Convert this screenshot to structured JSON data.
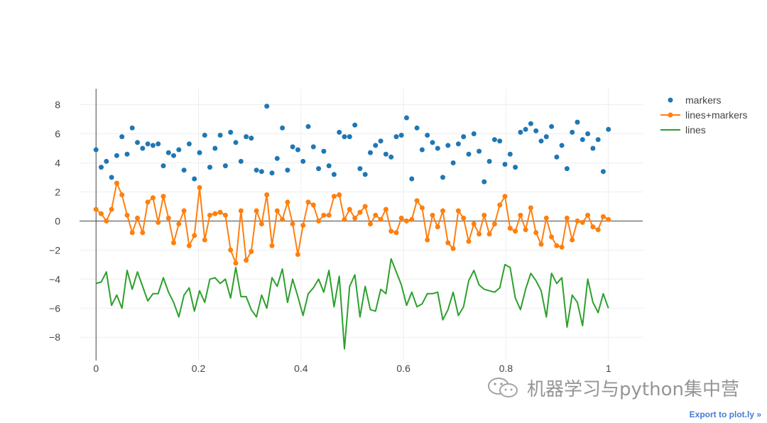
{
  "chart_data": {
    "type": "scatter",
    "x": [
      0,
      0.0101,
      0.0202,
      0.0303,
      0.0404,
      0.0505,
      0.0606,
      0.0707,
      0.0808,
      0.0909,
      0.101,
      0.1111,
      0.1212,
      0.1313,
      0.1414,
      0.1515,
      0.1616,
      0.1717,
      0.1818,
      0.1919,
      0.202,
      0.2121,
      0.2222,
      0.2323,
      0.2424,
      0.2525,
      0.2626,
      0.2727,
      0.2828,
      0.2929,
      0.303,
      0.3131,
      0.3232,
      0.3333,
      0.3434,
      0.3535,
      0.3636,
      0.3737,
      0.3838,
      0.3939,
      0.404,
      0.4141,
      0.4242,
      0.4343,
      0.4444,
      0.4545,
      0.4646,
      0.4747,
      0.4848,
      0.4949,
      0.5051,
      0.5152,
      0.5253,
      0.5354,
      0.5455,
      0.5556,
      0.5657,
      0.5758,
      0.5859,
      0.596,
      0.6061,
      0.6162,
      0.6263,
      0.6364,
      0.6465,
      0.6566,
      0.6667,
      0.6768,
      0.6869,
      0.697,
      0.7071,
      0.7172,
      0.7273,
      0.7374,
      0.7475,
      0.7576,
      0.7677,
      0.7778,
      0.7879,
      0.798,
      0.8081,
      0.8182,
      0.8283,
      0.8384,
      0.8485,
      0.8586,
      0.8687,
      0.8788,
      0.8889,
      0.899,
      0.9091,
      0.9192,
      0.9293,
      0.9394,
      0.9495,
      0.9596,
      0.9697,
      0.9798,
      0.9899,
      1
    ],
    "series": [
      {
        "name": "markers",
        "mode": "markers",
        "color": "#1f77b4",
        "values": [
          4.9,
          3.7,
          4.1,
          3,
          4.5,
          5.8,
          4.6,
          6.4,
          5.4,
          5,
          5.3,
          5.2,
          5.3,
          3.8,
          4.7,
          4.5,
          4.9,
          3.5,
          5.3,
          2.9,
          4.7,
          5.9,
          3.7,
          5,
          5.9,
          3.8,
          6.1,
          5.4,
          4.1,
          5.8,
          5.7,
          3.5,
          3.4,
          7.9,
          3.3,
          4.3,
          6.4,
          3.5,
          5.1,
          4.9,
          4.1,
          6.5,
          5.1,
          3.6,
          4.8,
          3.8,
          3.2,
          6.1,
          5.8,
          5.8,
          6.6,
          3.6,
          3.2,
          4.7,
          5.2,
          5.5,
          4.6,
          4.4,
          5.8,
          5.9,
          7.1,
          2.9,
          6.4,
          4.9,
          5.9,
          5.4,
          5,
          3,
          5.2,
          4,
          5.3,
          5.8,
          4.6,
          6,
          4.8,
          2.7,
          4.1,
          5.6,
          5.5,
          3.9,
          4.6,
          3.7,
          6.1,
          6.3,
          6.7,
          6.2,
          5.5,
          5.8,
          6.5,
          4.4,
          5.2,
          3.6,
          6.1,
          6.8,
          5.6,
          6,
          5,
          5.6,
          3.4,
          6.3
        ]
      },
      {
        "name": "lines+markers",
        "mode": "lines+markers",
        "color": "#ff7f0e",
        "values": [
          0.8,
          0.5,
          0,
          0.8,
          2.6,
          1.8,
          0.4,
          -0.8,
          0.2,
          -0.8,
          1.3,
          1.6,
          -0.1,
          1.7,
          0.2,
          -1.5,
          -0.2,
          0.7,
          -1.7,
          -1,
          2.3,
          -1.3,
          0.4,
          0.5,
          0.6,
          0.4,
          -2,
          -2.9,
          0.7,
          -2.7,
          -2.1,
          0.7,
          -0.2,
          1.8,
          -1.7,
          0.7,
          0.1,
          1.3,
          -0.2,
          -2.3,
          -0.3,
          1.3,
          1.1,
          0,
          0.4,
          0.4,
          1.7,
          1.8,
          0.1,
          0.8,
          0.2,
          0.6,
          1,
          -0.2,
          0.4,
          0.1,
          0.8,
          -0.7,
          -0.8,
          0.2,
          0,
          0.1,
          1.4,
          0.9,
          -1.3,
          0.4,
          -0.4,
          0.7,
          -1.5,
          -1.9,
          0.7,
          0.2,
          -1.4,
          -0.2,
          -0.9,
          0.4,
          -0.9,
          -0.2,
          1.1,
          1.7,
          -0.5,
          -0.7,
          0.4,
          -0.6,
          0.9,
          -0.8,
          -1.6,
          0.2,
          -1.1,
          -1.7,
          -1.8,
          0.2,
          -1.3,
          0,
          -0.1,
          0.4,
          -0.4,
          -0.6,
          0.3,
          0.1
        ]
      },
      {
        "name": "lines",
        "mode": "lines",
        "color": "#2ca02c",
        "values": [
          -4.3,
          -4.2,
          -3.5,
          -5.8,
          -5.1,
          -6,
          -3.4,
          -4.7,
          -3.5,
          -4.5,
          -5.5,
          -5,
          -5,
          -3.9,
          -4.9,
          -5.6,
          -6.6,
          -5.1,
          -4.6,
          -6.2,
          -4.8,
          -5.6,
          -4,
          -3.9,
          -4.3,
          -4,
          -5.3,
          -3.2,
          -5.2,
          -5.2,
          -6.1,
          -6.6,
          -5.1,
          -6,
          -3.9,
          -4.5,
          -3.3,
          -5.6,
          -4,
          -5.2,
          -6.5,
          -5,
          -4.6,
          -4,
          -4.9,
          -3.4,
          -5.9,
          -3.8,
          -8.8,
          -4.5,
          -3.7,
          -6.6,
          -4.5,
          -6.1,
          -6.2,
          -4.7,
          -5,
          -2.6,
          -3.5,
          -4.4,
          -5.8,
          -4.9,
          -5.9,
          -5.7,
          -5,
          -5,
          -4.9,
          -6.8,
          -6.1,
          -4.9,
          -6.5,
          -5.9,
          -4.1,
          -3.4,
          -4.4,
          -4.7,
          -4.8,
          -4.9,
          -4.6,
          -3,
          -3.2,
          -5.3,
          -6.1,
          -4.7,
          -3.6,
          -4.1,
          -4.8,
          -6.6,
          -3.6,
          -4.3,
          -3.9,
          -7.3,
          -5.1,
          -5.6,
          -7.2,
          -4,
          -5.6,
          -6.3,
          -5,
          -6
        ]
      }
    ],
    "xlim": [
      -0.0322,
      1.0669
    ],
    "ylim": [
      -9.6,
      9.1
    ],
    "xticks": [
      0,
      0.2,
      0.4,
      0.6,
      0.8,
      1
    ],
    "yticks": [
      -8,
      -6,
      -4,
      -2,
      0,
      2,
      4,
      6,
      8
    ],
    "xtick_labels": [
      "0",
      "0.2",
      "0.4",
      "0.6",
      "0.8",
      "1"
    ],
    "ytick_labels": [
      "−8",
      "−6",
      "−4",
      "−2",
      "0",
      "2",
      "4",
      "6",
      "8"
    ],
    "grid": true,
    "zero_lines": true,
    "legend_placement": "top-right",
    "title": "",
    "xlabel": "",
    "ylabel": ""
  },
  "legend": {
    "items": [
      "markers",
      "lines+markers",
      "lines"
    ]
  },
  "watermark": {
    "text": "机器学习与python集中营",
    "icon": "wechat-icon"
  },
  "export_link": {
    "label": "Export to plot.ly »"
  },
  "colors": {
    "grid": "#eeeeee",
    "zeroline": "#444444",
    "tick_text": "#444444",
    "export_link": "#447adb"
  }
}
